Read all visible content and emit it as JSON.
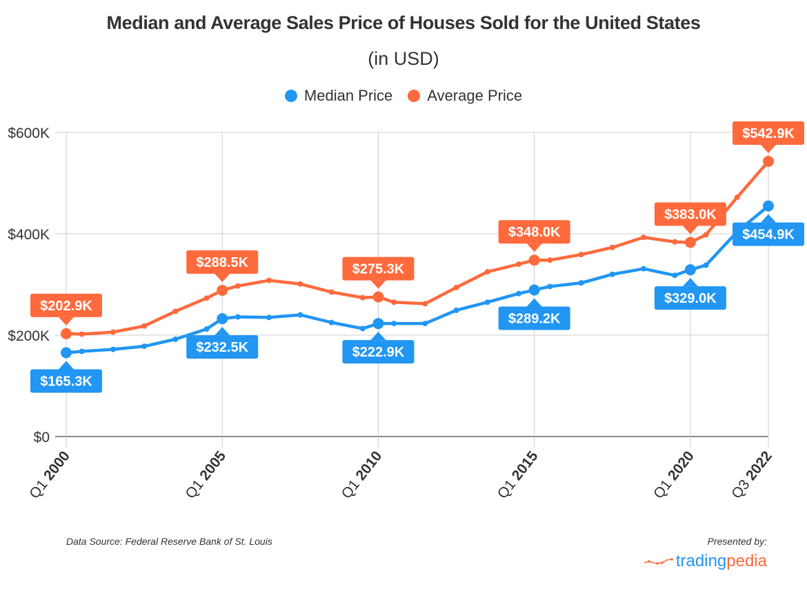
{
  "chart_data": {
    "type": "line",
    "title": "Median and Average Sales Price of Houses Sold for the United States",
    "subtitle": "(in USD)",
    "xlabel": "",
    "ylabel": "",
    "ylim": [
      0,
      600
    ],
    "xlim": [
      2000.0,
      2022.5
    ],
    "grid": true,
    "legend_position": "top-center",
    "y_ticks": [
      {
        "value": 0,
        "label": "$0"
      },
      {
        "value": 200,
        "label": "$200K"
      },
      {
        "value": 400,
        "label": "$400K"
      },
      {
        "value": 600,
        "label": "$600K"
      }
    ],
    "x_ticks": [
      {
        "value": 2000.0,
        "q": "Q1",
        "year": "2000"
      },
      {
        "value": 2005.0,
        "q": "Q1",
        "year": "2005"
      },
      {
        "value": 2010.0,
        "q": "Q1",
        "year": "2010"
      },
      {
        "value": 2015.0,
        "q": "Q1",
        "year": "2015"
      },
      {
        "value": 2020.0,
        "q": "Q1",
        "year": "2020"
      },
      {
        "value": 2022.5,
        "q": "Q3",
        "year": "2022"
      }
    ],
    "x": [
      2000.0,
      2000.5,
      2001.5,
      2002.5,
      2003.5,
      2004.5,
      2005.0,
      2005.5,
      2006.5,
      2007.5,
      2008.5,
      2009.5,
      2010.0,
      2010.5,
      2011.5,
      2012.5,
      2013.5,
      2014.5,
      2015.0,
      2015.5,
      2016.5,
      2017.5,
      2018.5,
      2019.5,
      2020.0,
      2020.5,
      2021.5,
      2022.5
    ],
    "series": [
      {
        "name": "Median Price",
        "color": "#2196f3",
        "values": [
          165.3,
          168,
          172,
          178,
          192,
          212,
          232.5,
          236,
          235,
          240,
          225,
          213,
          222.9,
          223,
          223,
          249,
          265,
          282,
          289.2,
          296,
          303,
          320,
          331,
          318,
          329.0,
          338,
          404,
          454.9
        ],
        "labels": [
          {
            "index": 0,
            "text": "$165.3K",
            "position": "below"
          },
          {
            "index": 6,
            "text": "$232.5K",
            "position": "below"
          },
          {
            "index": 12,
            "text": "$222.9K",
            "position": "below"
          },
          {
            "index": 18,
            "text": "$289.2K",
            "position": "below"
          },
          {
            "index": 24,
            "text": "$329.0K",
            "position": "below"
          },
          {
            "index": 27,
            "text": "$454.9K",
            "position": "below"
          }
        ]
      },
      {
        "name": "Average Price",
        "color": "#ff6a3d",
        "values": [
          202.9,
          202,
          206,
          218,
          247,
          273,
          288.5,
          297,
          308,
          301,
          285,
          274,
          275.3,
          265,
          262,
          294,
          325,
          340,
          348.0,
          348,
          359,
          373,
          393,
          384,
          383.0,
          398,
          472,
          542.9
        ],
        "labels": [
          {
            "index": 0,
            "text": "$202.9K",
            "position": "above"
          },
          {
            "index": 6,
            "text": "$288.5K",
            "position": "above"
          },
          {
            "index": 12,
            "text": "$275.3K",
            "position": "above"
          },
          {
            "index": 18,
            "text": "$348.0K",
            "position": "above"
          },
          {
            "index": 24,
            "text": "$383.0K",
            "position": "above"
          },
          {
            "index": 27,
            "text": "$542.9K",
            "position": "above"
          }
        ]
      }
    ]
  },
  "footer": {
    "source": "Data Source: Federal Reserve Bank of St. Louis",
    "presented_by": "Presented by:",
    "brand_part1": "trading",
    "brand_part2": "pedia",
    "brand_icon": "chart-line-logo-icon"
  }
}
